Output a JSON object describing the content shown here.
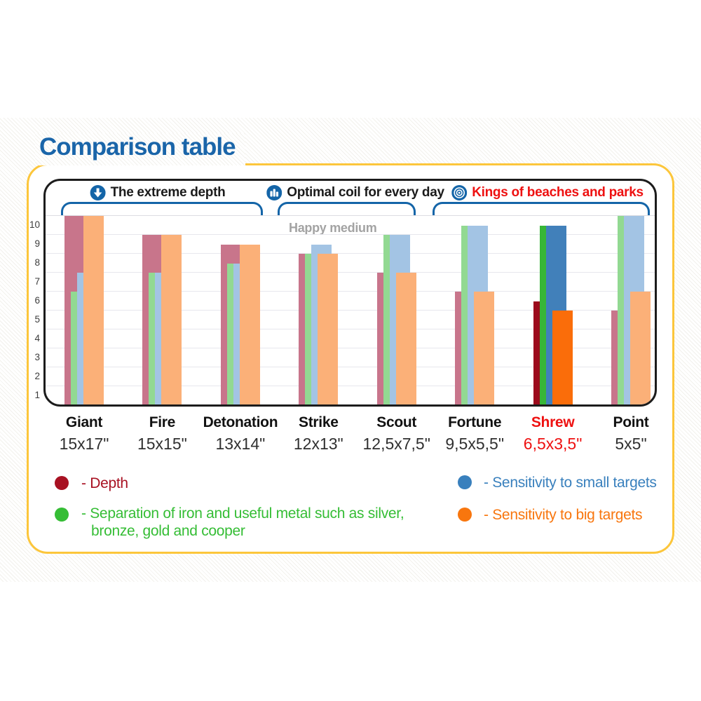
{
  "title": "Comparison table",
  "colors": {
    "accent_blue": "#1a65a9",
    "bracket_blue": "#1465a8",
    "highlight_red": "#ee1111",
    "card_border_yellow": "#fcc63b"
  },
  "group_headers": [
    {
      "label": "The extreme depth",
      "icon": "down-arrow-icon",
      "text_color": "#1b1b1b"
    },
    {
      "label": "Optimal coil for every day",
      "icon": "bar-chart-icon",
      "text_color": "#1b1b1b"
    },
    {
      "label": "Kings of beaches and parks",
      "icon": "target-icon",
      "text_color": "#ee1111"
    }
  ],
  "chart_data": {
    "type": "bar",
    "title": "Comparison table",
    "annotation": "Happy medium",
    "ylim": [
      0.5,
      10.5
    ],
    "y_ticks": [
      1,
      2,
      3,
      4,
      5,
      6,
      7,
      8,
      9,
      10
    ],
    "grid": "horizontal lines at half-unit values",
    "categories": [
      "Giant",
      "Fire",
      "Detonation",
      "Strike",
      "Scout",
      "Fortune",
      "Shrew",
      "Point"
    ],
    "category_sizes": [
      "15x17\"",
      "15x15\"",
      "13x14\"",
      "12x13\"",
      "12,5x7,5\"",
      "9,5x5,5\"",
      "6,5x3,5\"",
      "5x5\""
    ],
    "highlighted_category": "Shrew",
    "highlight_color": "#ee1111",
    "series": [
      {
        "name": "Depth",
        "values": [
          10.5,
          9.5,
          9,
          8.5,
          7.5,
          6.5,
          6,
          5.5
        ],
        "color": "#c8758b",
        "color_highlighted": "#9c0b1c"
      },
      {
        "name": "Separation of iron and useful metal such as silver, bronze, gold and cooper",
        "values": [
          6.5,
          7.5,
          8,
          8.5,
          9.5,
          10,
          10,
          10.5
        ],
        "color": "#92d992",
        "color_highlighted": "#37b637"
      },
      {
        "name": "Sensitivity to small targets",
        "values": [
          7.5,
          7.5,
          8,
          9,
          9.5,
          10,
          10,
          10.5
        ],
        "color": "#a3c4e4",
        "color_highlighted": "#4180ba"
      },
      {
        "name": "Sensitivity to big targets",
        "values": [
          10.5,
          9.5,
          9,
          8.5,
          7.5,
          6.5,
          5.5,
          6.5
        ],
        "color": "#fbb078",
        "color_highlighted": "#fa6d0a"
      }
    ],
    "header_spans": [
      {
        "header": "The extreme depth",
        "categories": [
          "Giant",
          "Fire",
          "Detonation"
        ]
      },
      {
        "header": "Optimal coil for every day",
        "categories": [
          "Strike",
          "Scout"
        ]
      },
      {
        "header": "Kings of beaches and parks",
        "categories": [
          "Fortune",
          "Shrew",
          "Point"
        ]
      }
    ],
    "legend_position": "below chart, two columns"
  },
  "legend": {
    "depth": {
      "label": "- Depth",
      "color": "#a81122"
    },
    "separation": {
      "label_line1": "- Separation of iron and useful metal such as silver,",
      "label_line2": "bronze, gold and cooper",
      "color": "#35bd35"
    },
    "small_targets": {
      "label": "- Sensitivity to small targets",
      "color": "#3980bd"
    },
    "big_targets": {
      "label": "- Sensitivity to big targets",
      "color": "#f8760e"
    }
  }
}
